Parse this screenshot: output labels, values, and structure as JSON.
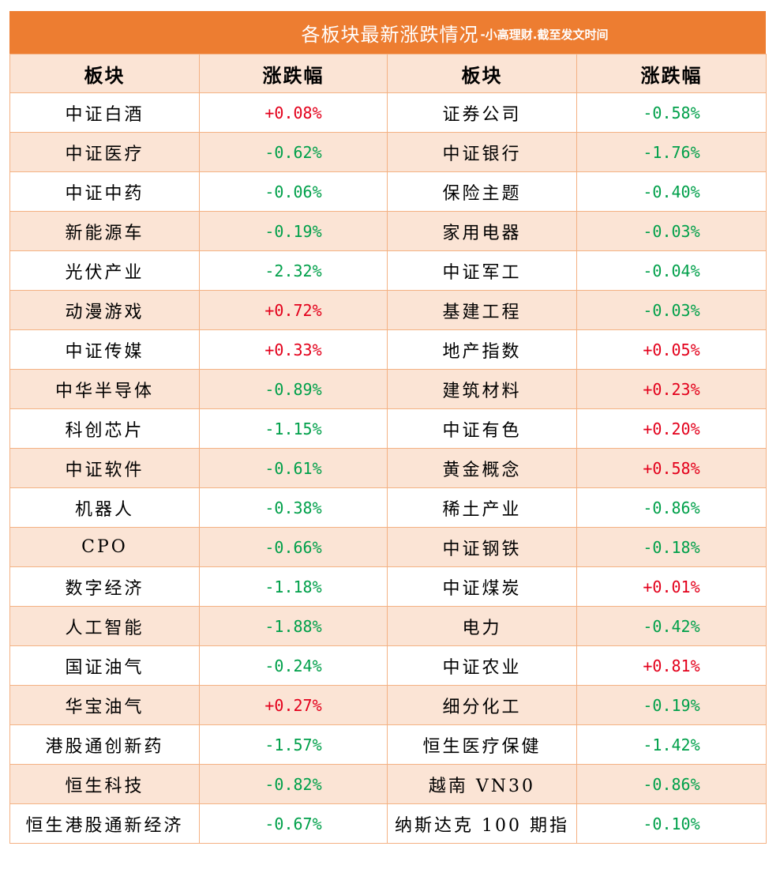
{
  "banner": {
    "title": "各板块最新涨跌情况",
    "subtitle": "-小高理财.截至发文时间"
  },
  "headers": [
    "板块",
    "涨跌幅",
    "板块",
    "涨跌幅"
  ],
  "colors": {
    "header_orange": "#ED7D31",
    "row_alt": "#FBE4D5",
    "border": "#F4B183",
    "up": "#E3001B",
    "down": "#00A04A"
  },
  "rows": [
    {
      "left_name": "中证白酒",
      "left_change": "+0.08%",
      "right_name": "证券公司",
      "right_change": "-0.58%"
    },
    {
      "left_name": "中证医疗",
      "left_change": "-0.62%",
      "right_name": "中证银行",
      "right_change": "-1.76%"
    },
    {
      "left_name": "中证中药",
      "left_change": "-0.06%",
      "right_name": "保险主题",
      "right_change": "-0.40%"
    },
    {
      "left_name": "新能源车",
      "left_change": "-0.19%",
      "right_name": "家用电器",
      "right_change": "-0.03%"
    },
    {
      "left_name": "光伏产业",
      "left_change": "-2.32%",
      "right_name": "中证军工",
      "right_change": "-0.04%"
    },
    {
      "left_name": "动漫游戏",
      "left_change": "+0.72%",
      "right_name": "基建工程",
      "right_change": "-0.03%"
    },
    {
      "left_name": "中证传媒",
      "left_change": "+0.33%",
      "right_name": "地产指数",
      "right_change": "+0.05%"
    },
    {
      "left_name": "中华半导体",
      "left_change": "-0.89%",
      "right_name": "建筑材料",
      "right_change": "+0.23%"
    },
    {
      "left_name": "科创芯片",
      "left_change": "-1.15%",
      "right_name": "中证有色",
      "right_change": "+0.20%"
    },
    {
      "left_name": "中证软件",
      "left_change": "-0.61%",
      "right_name": "黄金概念",
      "right_change": "+0.58%"
    },
    {
      "left_name": "机器人",
      "left_change": "-0.38%",
      "right_name": "稀土产业",
      "right_change": "-0.86%"
    },
    {
      "left_name": "CPO",
      "left_change": "-0.66%",
      "right_name": "中证钢铁",
      "right_change": "-0.18%"
    },
    {
      "left_name": "数字经济",
      "left_change": "-1.18%",
      "right_name": "中证煤炭",
      "right_change": "+0.01%"
    },
    {
      "left_name": "人工智能",
      "left_change": "-1.88%",
      "right_name": "电力",
      "right_change": "-0.42%"
    },
    {
      "left_name": "国证油气",
      "left_change": "-0.24%",
      "right_name": "中证农业",
      "right_change": "+0.81%"
    },
    {
      "left_name": "华宝油气",
      "left_change": "+0.27%",
      "right_name": "细分化工",
      "right_change": "-0.19%"
    },
    {
      "left_name": "港股通创新药",
      "left_change": "-1.57%",
      "right_name": "恒生医疗保健",
      "right_change": "-1.42%"
    },
    {
      "left_name": "恒生科技",
      "left_change": "-0.82%",
      "right_name": "越南 VN30",
      "right_change": "-0.86%"
    },
    {
      "left_name": "恒生港股通新经济",
      "left_change": "-0.67%",
      "right_name": "纳斯达克 100 期指",
      "right_change": "-0.10%"
    }
  ]
}
